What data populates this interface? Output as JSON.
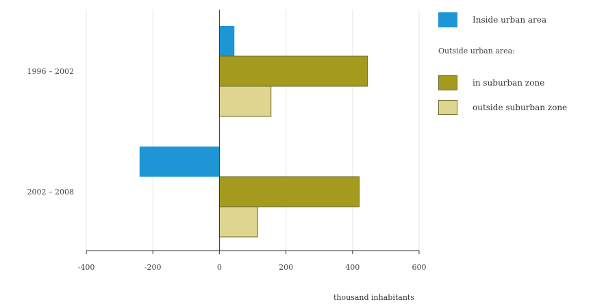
{
  "colors": {
    "inside": "#1e96d6",
    "suburban": "#a39a1e",
    "outside_suburban": "#ddd590",
    "grid": "#e6e6e6",
    "axis": "#333333"
  },
  "legend": {
    "inside_label": "Inside urban area",
    "outside_header": "Outside urban area:",
    "suburban_label": "in suburban zone",
    "outside_suburban_label": "outside suburban zone"
  },
  "chart_data": {
    "type": "bar",
    "orientation": "horizontal",
    "categories": [
      "1996 – 2002",
      "2002 – 2008"
    ],
    "series": [
      {
        "name": "Inside urban area",
        "values": [
          45,
          -240
        ]
      },
      {
        "name": "in suburban zone",
        "values": [
          445,
          420
        ]
      },
      {
        "name": "outside suburban zone",
        "values": [
          155,
          115
        ]
      }
    ],
    "xlim": [
      -400,
      600
    ],
    "xticks": [
      -400,
      -200,
      0,
      200,
      400,
      600
    ],
    "xtick_labels": [
      "-400",
      "-200",
      "0",
      "200",
      "400",
      "600"
    ],
    "xlabel": "thousand inhabitants",
    "grid": "vertical",
    "legend_position": "right"
  }
}
